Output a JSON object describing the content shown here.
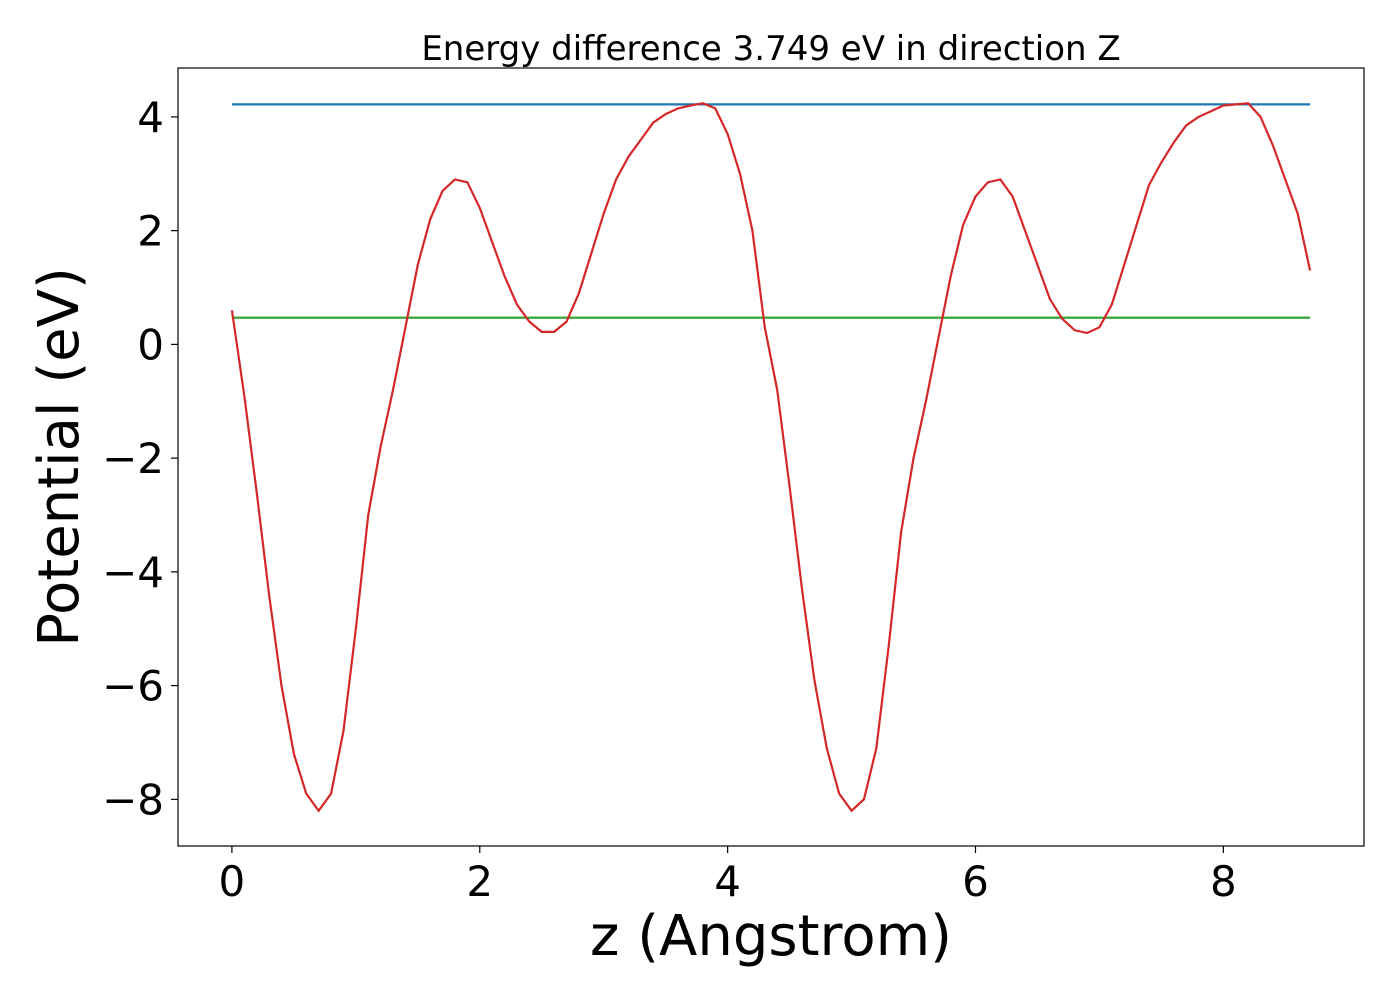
{
  "chart_data": {
    "type": "line",
    "title": "Energy difference 3.749 eV in direction Z",
    "xlabel": "z (Angstrom)",
    "ylabel": "Potential (eV)",
    "xlim": [
      -0.435,
      9.135
    ],
    "ylim": [
      -8.82,
      4.86
    ],
    "xticks": [
      0,
      2,
      4,
      6,
      8
    ],
    "yticks": [
      {
        "value": -8,
        "label": "−8"
      },
      {
        "value": -6,
        "label": "−6"
      },
      {
        "value": -4,
        "label": "−4"
      },
      {
        "value": -2,
        "label": "−2"
      },
      0,
      2,
      4
    ],
    "grid": false,
    "series": [
      {
        "color": "#d62728",
        "x": [
          0,
          0.1,
          0.2,
          0.3,
          0.4,
          0.5,
          0.6,
          0.7,
          0.8,
          0.9,
          1,
          1.1,
          1.2,
          1.3,
          1.4,
          1.5,
          1.6,
          1.7,
          1.8,
          1.9,
          2,
          2.1,
          2.2,
          2.3,
          2.4,
          2.5,
          2.6,
          2.7,
          2.8,
          2.9,
          3,
          3.1,
          3.2,
          3.3,
          3.4,
          3.5,
          3.6,
          3.7,
          3.8,
          3.9,
          4,
          4.1,
          4.2,
          4.3,
          4.4,
          4.5,
          4.6,
          4.7,
          4.8,
          4.9,
          5,
          5.1,
          5.2,
          5.3,
          5.4,
          5.5,
          5.6,
          5.7,
          5.8,
          5.9,
          6,
          6.1,
          6.2,
          6.3,
          6.4,
          6.5,
          6.6,
          6.7,
          6.8,
          6.9,
          7,
          7.1,
          7.2,
          7.3,
          7.4,
          7.5,
          7.6,
          7.7,
          7.8,
          7.9,
          8,
          8.1,
          8.2,
          8.3,
          8.4,
          8.5,
          8.6,
          8.7
        ],
        "values": [
          0.6,
          -0.9,
          -2.6,
          -4.4,
          -6.0,
          -7.2,
          -7.9,
          -8.2,
          -7.9,
          -6.8,
          -5.0,
          -3.0,
          -1.8,
          -0.8,
          0.3,
          1.4,
          2.2,
          2.7,
          2.9,
          2.85,
          2.4,
          1.8,
          1.2,
          0.7,
          0.4,
          0.22,
          0.22,
          0.4,
          0.9,
          1.6,
          2.3,
          2.9,
          3.3,
          3.6,
          3.9,
          4.05,
          4.15,
          4.2,
          4.24,
          4.15,
          3.7,
          3.0,
          2.0,
          0.3,
          -0.8,
          -2.5,
          -4.3,
          -5.9,
          -7.1,
          -7.9,
          -8.2,
          -8.0,
          -7.1,
          -5.3,
          -3.3,
          -2.0,
          -1.0,
          0.1,
          1.2,
          2.1,
          2.6,
          2.85,
          2.9,
          2.6,
          2.0,
          1.4,
          0.8,
          0.45,
          0.25,
          0.2,
          0.3,
          0.7,
          1.4,
          2.1,
          2.8,
          3.2,
          3.55,
          3.85,
          4.0,
          4.1,
          4.2,
          4.22,
          4.24,
          4.0,
          3.5,
          2.9,
          2.3,
          1.3
        ]
      },
      {
        "color": "#1f77b4",
        "x": [
          0,
          8.7
        ],
        "values": [
          4.22,
          4.22
        ]
      },
      {
        "color": "#2ca02c",
        "x": [
          0,
          8.7
        ],
        "values": [
          0.47,
          0.47
        ]
      }
    ]
  }
}
